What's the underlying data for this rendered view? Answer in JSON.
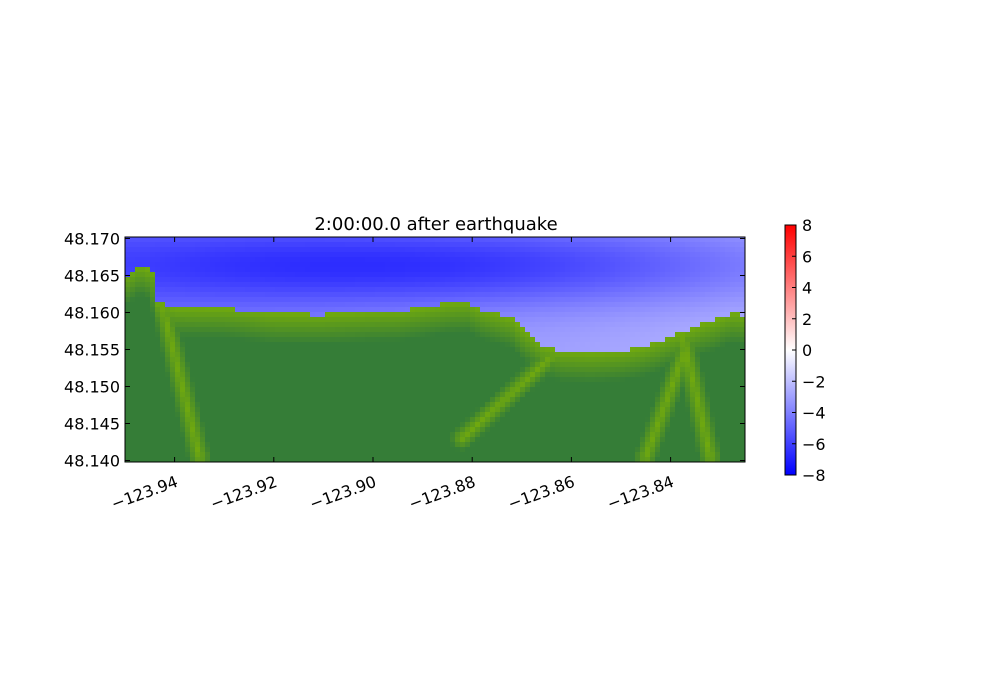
{
  "chart_data": {
    "type": "heatmap",
    "title": "2:00:00.0 after earthquake",
    "xlabel": "",
    "ylabel": "",
    "x_ticks": [
      -123.94,
      -123.92,
      -123.9,
      -123.88,
      -123.86,
      -123.84
    ],
    "x_tick_labels": [
      "−123.94",
      "−123.92",
      "−123.90",
      "−123.88",
      "−123.86",
      "−123.84"
    ],
    "y_ticks": [
      48.14,
      48.145,
      48.15,
      48.155,
      48.16,
      48.165,
      48.17
    ],
    "y_tick_labels": [
      "48.140",
      "48.145",
      "48.150",
      "48.155",
      "48.160",
      "48.165",
      "48.170"
    ],
    "xlim": [
      -123.95,
      -123.825
    ],
    "ylim": [
      48.1398,
      48.1702
    ],
    "colorbar": {
      "colormap": "bwr",
      "range": [
        -8,
        8
      ],
      "ticks": [
        8,
        6,
        4,
        2,
        0,
        -2,
        -4,
        -6,
        -8
      ],
      "tick_labels": [
        "8",
        "6",
        "4",
        "2",
        "0",
        "−2",
        "−4",
        "−6",
        "−8"
      ],
      "colors": {
        "low": "#0000ff",
        "mid": "#ffffff",
        "high": "#ff0000"
      }
    },
    "land_colors": {
      "lowland": "#6fa80f",
      "highland": "#357d37"
    },
    "shoreline": {
      "lon": [
        -123.95,
        -123.947,
        -123.9435,
        -123.9435,
        -123.94,
        -123.93,
        -123.92,
        -123.91,
        -123.9,
        -123.895,
        -123.89,
        -123.885,
        -123.881,
        -123.878,
        -123.875,
        -123.872,
        -123.87,
        -123.866,
        -123.862,
        -123.856,
        -123.85,
        -123.846,
        -123.843,
        -123.84,
        -123.837,
        -123.834,
        -123.831,
        -123.829,
        -123.827,
        -123.825
      ],
      "lat": [
        48.1648,
        48.1664,
        48.1652,
        48.1616,
        48.1607,
        48.1606,
        48.1598,
        48.1597,
        48.1601,
        48.1602,
        48.1607,
        48.1612,
        48.1614,
        48.1604,
        48.1598,
        48.1592,
        48.1578,
        48.1556,
        48.1547,
        48.1545,
        48.1548,
        48.1553,
        48.1559,
        48.1568,
        48.1575,
        48.1583,
        48.1589,
        48.1596,
        48.1599,
        48.1595
      ]
    },
    "wave_surface": {
      "trough_lon": -123.905,
      "trough_lat": 48.1664,
      "min_value": -6.6,
      "east_value": -2.2
    }
  }
}
